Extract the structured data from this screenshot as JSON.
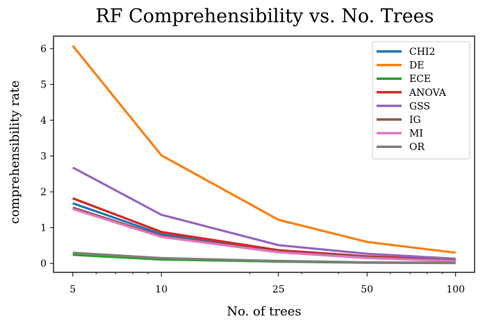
{
  "chart_data": {
    "type": "line",
    "title": "RF Comprehensibility vs. No. Trees",
    "xlabel": "No. of trees",
    "ylabel": "comprehensibility rate",
    "x": [
      5,
      10,
      25,
      50,
      100
    ],
    "x_tick_labels": [
      "5",
      "10",
      "25",
      "50",
      "100"
    ],
    "x_scale": "log",
    "xlim": [
      4.3,
      116
    ],
    "ylim": [
      -0.25,
      6.35
    ],
    "y_ticks": [
      0,
      1,
      2,
      3,
      4,
      5,
      6
    ],
    "y_tick_labels": [
      "0",
      "1",
      "2",
      "3",
      "4",
      "5",
      "6"
    ],
    "grid": false,
    "legend_position": "top-right",
    "series": [
      {
        "name": "CHI2",
        "color": "#1f77b4",
        "values": [
          1.68,
          0.82,
          0.32,
          0.17,
          0.07
        ]
      },
      {
        "name": "DE",
        "color": "#ff7f0e",
        "values": [
          6.08,
          3.02,
          1.22,
          0.6,
          0.3
        ]
      },
      {
        "name": "ECE",
        "color": "#2ca02c",
        "values": [
          0.24,
          0.11,
          0.05,
          0.02,
          0.01
        ]
      },
      {
        "name": "ANOVA",
        "color": "#d62728",
        "values": [
          1.82,
          0.88,
          0.37,
          0.2,
          0.1
        ]
      },
      {
        "name": "GSS",
        "color": "#9467bd",
        "values": [
          2.68,
          1.36,
          0.51,
          0.27,
          0.13
        ]
      },
      {
        "name": "IG",
        "color": "#8c564b",
        "values": [
          1.56,
          0.77,
          0.33,
          0.18,
          0.08
        ]
      },
      {
        "name": "MI",
        "color": "#e377c2",
        "values": [
          1.52,
          0.74,
          0.31,
          0.15,
          0.06
        ]
      },
      {
        "name": "OR",
        "color": "#7f7f7f",
        "values": [
          0.3,
          0.15,
          0.07,
          0.03,
          0.02
        ]
      }
    ]
  }
}
